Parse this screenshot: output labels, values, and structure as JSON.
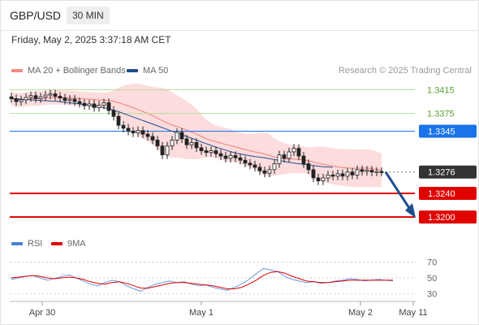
{
  "header": {
    "pair": "GBP/USD",
    "timeframe": "30 MIN"
  },
  "timestamp": "Friday, May 2, 2025 3:37:18 AM CET",
  "legend": {
    "ma20": {
      "label": "MA 20 + Bollinger Bands",
      "color": "#f08080"
    },
    "ma50": {
      "label": "MA 50",
      "color": "#1f4e8c"
    }
  },
  "credit": "Research © 2025 Trading Central",
  "rsi_legend": {
    "rsi": {
      "label": "RSI",
      "color": "#4a7fd4"
    },
    "ma9": {
      "label": "9MA",
      "color": "#e00000"
    }
  },
  "chart_data": [
    {
      "type": "candlestick",
      "title": "",
      "ylim": [
        1.3185,
        1.3428
      ],
      "x_ticks": [
        "Apr 30",
        "May 1",
        "May 2",
        "May 11"
      ],
      "levels": [
        {
          "label": "1.3415",
          "value": 1.3415,
          "style": "resistance",
          "color": "#7ab648"
        },
        {
          "label": "1.3375",
          "value": 1.3375,
          "style": "resistance",
          "color": "#7ab648"
        },
        {
          "label": "1.3345",
          "value": 1.3345,
          "style": "pivot",
          "color": "#1a73e8"
        },
        {
          "label": "1.3276",
          "value": 1.3276,
          "style": "last",
          "color": "#333333"
        },
        {
          "label": "1.3240",
          "value": 1.324,
          "style": "target",
          "color": "#e00000"
        },
        {
          "label": "1.3200",
          "value": 1.32,
          "style": "target",
          "color": "#e00000"
        }
      ],
      "series": [
        {
          "name": "MA 20 + Bollinger Bands"
        },
        {
          "name": "MA 50"
        }
      ],
      "closes": [
        1.34,
        1.3395,
        1.3398,
        1.3402,
        1.3405,
        1.34,
        1.3403,
        1.3406,
        1.3408,
        1.3404,
        1.3401,
        1.3397,
        1.3399,
        1.3395,
        1.3392,
        1.3388,
        1.3391,
        1.3385,
        1.3389,
        1.3393,
        1.338,
        1.337,
        1.3355,
        1.335,
        1.3345,
        1.3342,
        1.3346,
        1.334,
        1.3336,
        1.333,
        1.332,
        1.3305,
        1.332,
        1.333,
        1.3343,
        1.3332,
        1.3322,
        1.3326,
        1.3317,
        1.3312,
        1.3309,
        1.3312,
        1.3307,
        1.3303,
        1.3299,
        1.3304,
        1.33,
        1.3296,
        1.3291,
        1.3288,
        1.3284,
        1.3278,
        1.3274,
        1.328,
        1.329,
        1.3305,
        1.3299,
        1.331,
        1.3316,
        1.3303,
        1.329,
        1.328,
        1.3266,
        1.3261,
        1.3266,
        1.3271,
        1.3269,
        1.3273,
        1.3269,
        1.3276,
        1.3271,
        1.328,
        1.3277,
        1.3279,
        1.3276,
        1.3277,
        1.3276
      ],
      "ma50": [
        1.34,
        1.3399,
        1.3398,
        1.3397,
        1.3396,
        1.3395,
        1.3393,
        1.3391,
        1.3389,
        1.3386,
        1.3383,
        1.3378,
        1.3372,
        1.3366,
        1.336,
        1.3354,
        1.3348,
        1.3342,
        1.3336,
        1.333,
        1.3324,
        1.3318,
        1.3313,
        1.3308,
        1.3305,
        1.3302,
        1.33,
        1.3297,
        1.3294,
        1.3291,
        1.3289,
        1.3287,
        1.3285,
        1.3284
      ],
      "rsi": {
        "ylim": [
          20,
          80
        ],
        "ticks": [
          70,
          50,
          30
        ],
        "rsi_values": [
          48,
          50,
          52,
          53,
          50,
          47,
          49,
          52,
          54,
          50,
          46,
          42,
          40,
          44,
          47,
          45,
          40,
          36,
          33,
          38,
          42,
          44,
          46,
          44,
          45,
          42,
          40,
          41,
          38,
          36,
          34,
          38,
          42,
          48,
          55,
          62,
          60,
          58,
          52,
          48,
          46,
          44,
          45,
          43,
          44,
          46,
          47,
          49,
          48,
          46,
          47,
          48,
          47,
          46
        ],
        "ma9_values": [
          50,
          51,
          52,
          53,
          52,
          50,
          49,
          50,
          51,
          50,
          48,
          45,
          43,
          42,
          44,
          45,
          43,
          40,
          37,
          37,
          39,
          41,
          43,
          44,
          44,
          43,
          42,
          41,
          40,
          38,
          36,
          36,
          38,
          42,
          47,
          53,
          57,
          58,
          56,
          52,
          49,
          46,
          45,
          44,
          44,
          45,
          46,
          47,
          47,
          47,
          47,
          47,
          47,
          47
        ]
      }
    }
  ]
}
